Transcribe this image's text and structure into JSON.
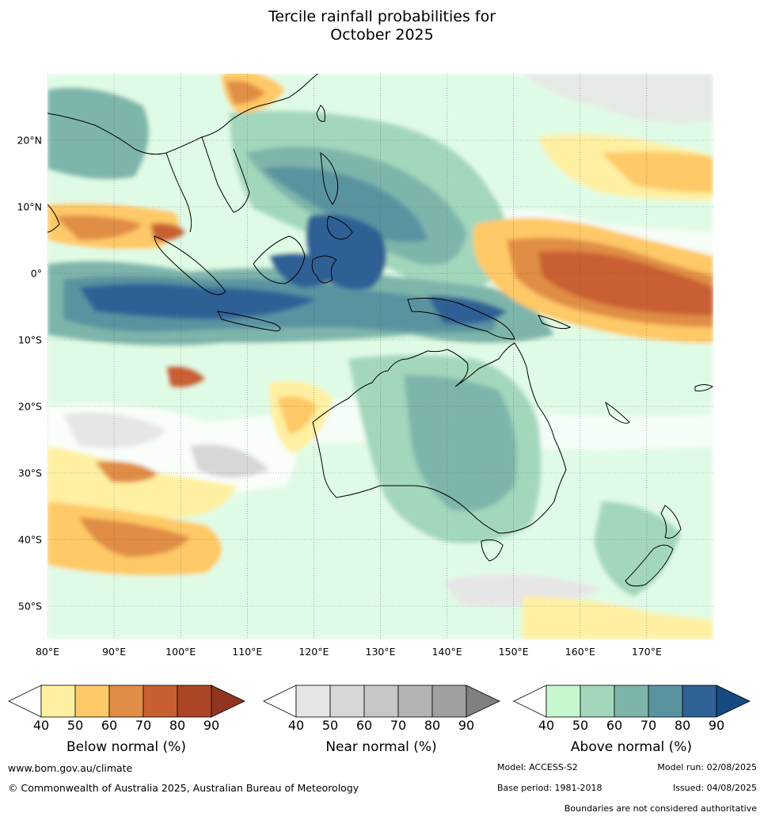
{
  "title": {
    "line1": "Tercile rainfall probabilities for",
    "line2": "October 2025"
  },
  "axes": {
    "lat_labels": [
      "20°N",
      "10°N",
      "0°",
      "10°S",
      "20°S",
      "30°S",
      "40°S",
      "50°S"
    ],
    "lon_labels": [
      "80°E",
      "90°E",
      "100°E",
      "110°E",
      "120°E",
      "130°E",
      "140°E",
      "150°E",
      "160°E",
      "170°E"
    ],
    "extent": {
      "lon_min": 80,
      "lon_max": 180,
      "lat_min": -55,
      "lat_max": 30
    }
  },
  "map": {
    "gridlines": true,
    "background_color": "#ffffff"
  },
  "colorbars": [
    {
      "title": "Below normal (%)",
      "ticks": [
        "40",
        "50",
        "60",
        "70",
        "80",
        "90"
      ],
      "colors": [
        "#ffffff",
        "#fff0a2",
        "#fec966",
        "#e08d45",
        "#c95f31",
        "#ac4525",
        "#913520"
      ]
    },
    {
      "title": "Near normal (%)",
      "ticks": [
        "40",
        "50",
        "60",
        "70",
        "80",
        "90"
      ],
      "colors": [
        "#ffffff",
        "#e6e6e6",
        "#d7d7d7",
        "#c7c7c7",
        "#b4b4b4",
        "#a0a0a0",
        "#808080"
      ]
    },
    {
      "title": "Above normal (%)",
      "ticks": [
        "40",
        "50",
        "60",
        "70",
        "80",
        "90"
      ],
      "colors": [
        "#ffffff",
        "#c6f7cf",
        "#a3d7bb",
        "#7eb5ab",
        "#5a93a0",
        "#2f6196",
        "#164a80"
      ]
    }
  ],
  "footer": {
    "url": "www.bom.gov.au/climate",
    "copyright": "© Commonwealth of Australia 2025, Australian Bureau of Meteorology",
    "model": "Model: ACCESS-S2",
    "model_run": "Model run: 02/08/2025",
    "base_period": "Base period: 1981-2018",
    "issued": "Issued: 04/08/2025",
    "disclaimer": "Boundaries are not considered authoritative"
  }
}
